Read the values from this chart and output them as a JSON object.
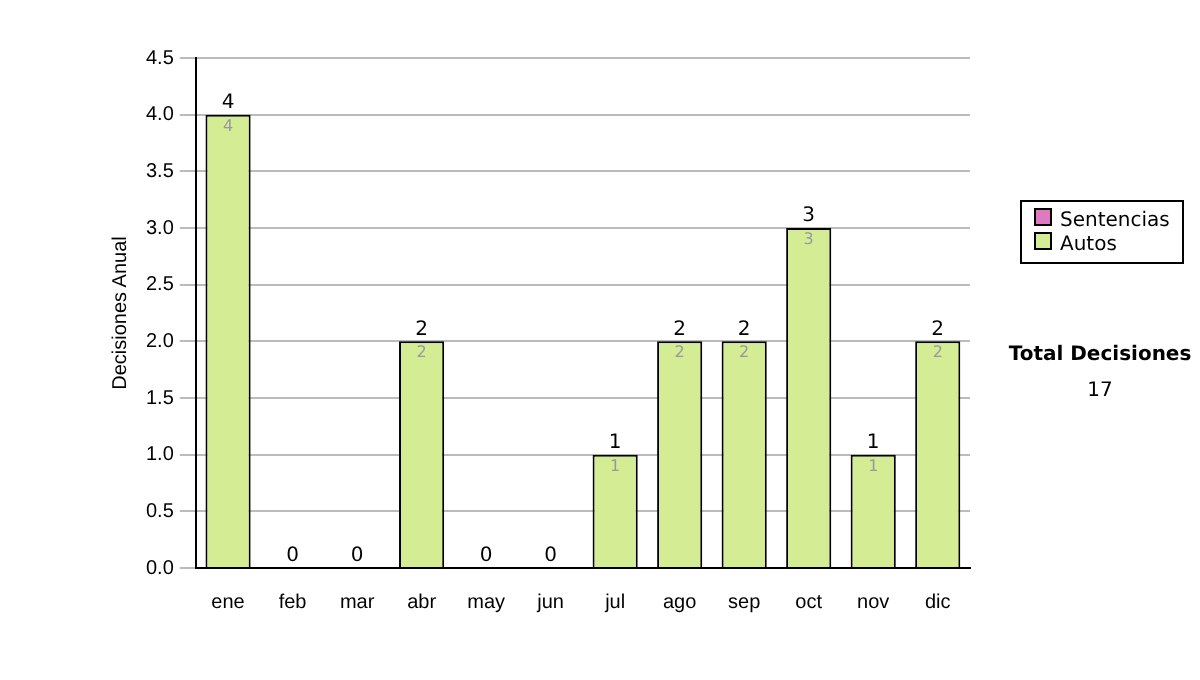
{
  "chart_data": {
    "type": "bar",
    "ylabel": "Decisiones Anual",
    "categories": [
      "ene",
      "feb",
      "mar",
      "abr",
      "may",
      "jun",
      "jul",
      "ago",
      "sep",
      "oct",
      "nov",
      "dic"
    ],
    "series": [
      {
        "name": "Sentencias",
        "color": "#e07ac0",
        "values": [
          0,
          0,
          0,
          0,
          0,
          0,
          0,
          0,
          0,
          0,
          0,
          0
        ]
      },
      {
        "name": "Autos",
        "color": "#d4ec94",
        "values": [
          4,
          0,
          0,
          2,
          0,
          0,
          1,
          2,
          2,
          3,
          1,
          2
        ],
        "value_labels": [
          "4",
          null,
          null,
          "2",
          null,
          null,
          "1",
          "2",
          "2",
          "3",
          "1",
          "2"
        ]
      }
    ],
    "stacked": true,
    "totals": [
      "4",
      "0",
      "0",
      "2",
      "0",
      "0",
      "1",
      "2",
      "2",
      "3",
      "1",
      "2"
    ],
    "ylim": [
      0,
      4.5
    ],
    "yticks": [
      {
        "value": 0,
        "label": "0.0"
      },
      {
        "value": 0.5,
        "label": "0.5"
      },
      {
        "value": 1,
        "label": "1.0"
      },
      {
        "value": 1.5,
        "label": "1.5"
      },
      {
        "value": 2,
        "label": "2.0"
      },
      {
        "value": 2.5,
        "label": "2.5"
      },
      {
        "value": 3,
        "label": "3.0"
      },
      {
        "value": 3.5,
        "label": "3.5"
      },
      {
        "value": 4,
        "label": "4.0"
      },
      {
        "value": 4.5,
        "label": "4.5"
      }
    ],
    "grid": "y",
    "legend": "right",
    "annotations": [
      "Total Decisiones",
      "17"
    ]
  }
}
